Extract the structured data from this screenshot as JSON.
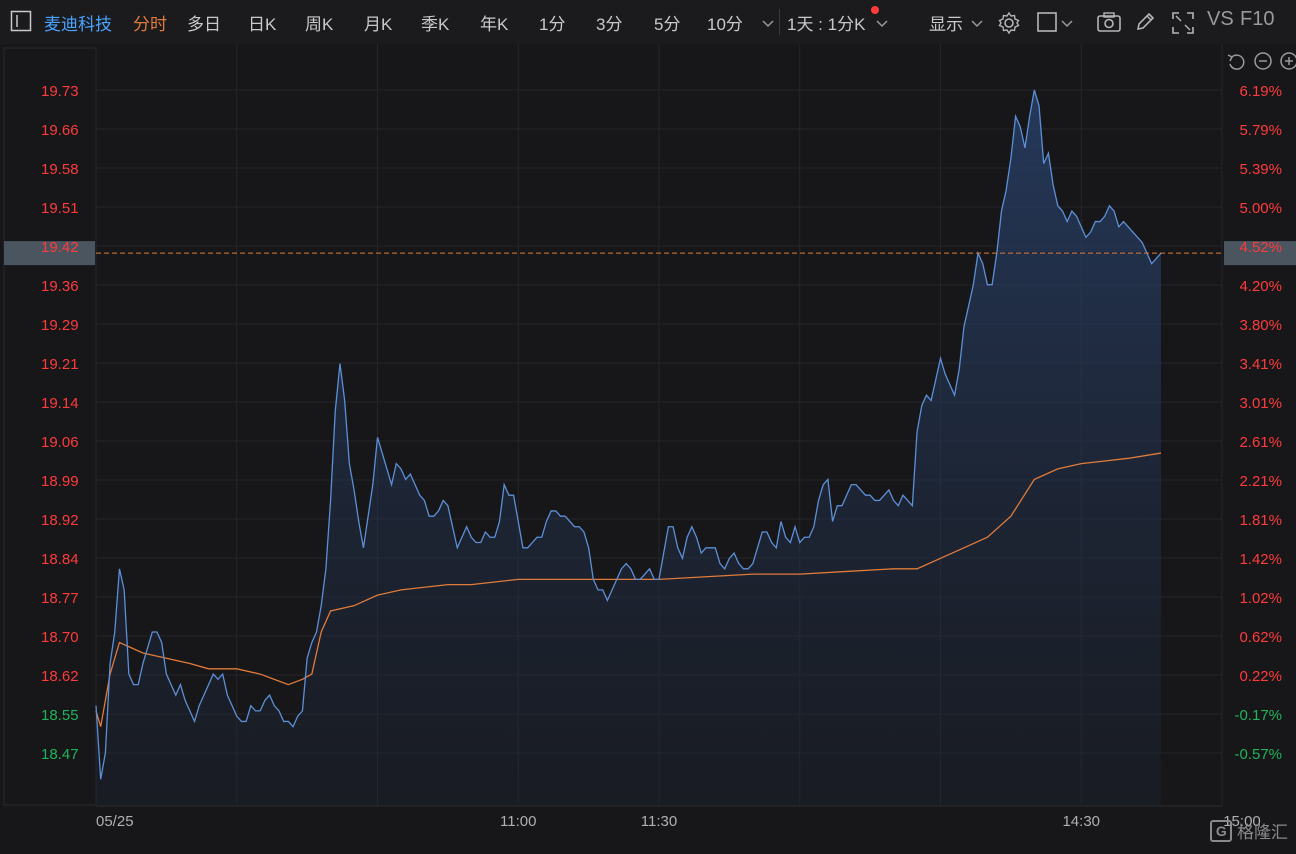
{
  "toolbar": {
    "stock_name": "麦迪科技",
    "tabs": [
      {
        "label": "分时",
        "active": true
      },
      {
        "label": "多日"
      },
      {
        "label": "日K"
      },
      {
        "label": "周K"
      },
      {
        "label": "月K"
      },
      {
        "label": "季K"
      },
      {
        "label": "年K"
      },
      {
        "label": "1分"
      },
      {
        "label": "3分"
      },
      {
        "label": "5分"
      },
      {
        "label": "10分"
      }
    ],
    "range_select": "1天 : 1分K",
    "display_label": "显示",
    "vs_label": "VS",
    "f10_label": "F10",
    "icons": [
      "panel-toggle-icon",
      "more-chevron-icon",
      "gear-icon",
      "square-icon",
      "camera-icon",
      "pencil-icon",
      "fullscreen-icon",
      "undo-icon",
      "zoom-out-icon",
      "zoom-in-icon"
    ]
  },
  "colors": {
    "up": "#ff3b3b",
    "down": "#21b35a",
    "price_line": "#5c8fd6",
    "avg_line": "#e07b3a",
    "active_tab": "#e07b3a",
    "stock_name": "#4aa3ff",
    "price_tag_bg": "#4a5560"
  },
  "current": {
    "price_label": "19.42",
    "pct_label": "4.52%"
  },
  "watermark": "格隆汇",
  "chart_data": {
    "type": "line",
    "title": "",
    "date_label": "05/25",
    "x_tick_labels": [
      "05/25",
      "11:00",
      "11:30",
      "14:30",
      "15:00"
    ],
    "y_ticks_left": [
      "19.73",
      "19.66",
      "19.58",
      "19.51",
      "19.42",
      "19.36",
      "19.29",
      "19.21",
      "19.14",
      "19.06",
      "18.99",
      "18.92",
      "18.84",
      "18.77",
      "18.70",
      "18.62",
      "18.55",
      "18.47"
    ],
    "y_ticks_right": [
      "6.19%",
      "5.79%",
      "5.39%",
      "5.00%",
      "4.52%",
      "4.20%",
      "3.80%",
      "3.41%",
      "3.01%",
      "2.61%",
      "2.21%",
      "1.81%",
      "1.42%",
      "1.02%",
      "0.62%",
      "0.22%",
      "-0.17%",
      "-0.57%"
    ],
    "ylim": [
      18.47,
      19.73
    ],
    "xlim": [
      0,
      240
    ],
    "prev_close": 18.58,
    "last_price": 19.42,
    "grid": true,
    "series": [
      {
        "values": [
          [
            0,
            18.56
          ],
          [
            1,
            18.42
          ],
          [
            2,
            18.47
          ],
          [
            3,
            18.64
          ],
          [
            4,
            18.7
          ],
          [
            5,
            18.82
          ],
          [
            6,
            18.78
          ],
          [
            7,
            18.62
          ],
          [
            8,
            18.6
          ],
          [
            9,
            18.6
          ],
          [
            10,
            18.64
          ],
          [
            11,
            18.67
          ],
          [
            12,
            18.7
          ],
          [
            13,
            18.7
          ],
          [
            14,
            18.68
          ],
          [
            15,
            18.62
          ],
          [
            16,
            18.6
          ],
          [
            17,
            18.58
          ],
          [
            18,
            18.6
          ],
          [
            19,
            18.57
          ],
          [
            20,
            18.55
          ],
          [
            21,
            18.53
          ],
          [
            22,
            18.56
          ],
          [
            23,
            18.58
          ],
          [
            24,
            18.6
          ],
          [
            25,
            18.62
          ],
          [
            26,
            18.61
          ],
          [
            27,
            18.62
          ],
          [
            28,
            18.58
          ],
          [
            29,
            18.56
          ],
          [
            30,
            18.54
          ],
          [
            31,
            18.53
          ],
          [
            32,
            18.53
          ],
          [
            33,
            18.56
          ],
          [
            34,
            18.55
          ],
          [
            35,
            18.55
          ],
          [
            36,
            18.57
          ],
          [
            37,
            18.58
          ],
          [
            38,
            18.56
          ],
          [
            39,
            18.55
          ],
          [
            40,
            18.53
          ],
          [
            41,
            18.53
          ],
          [
            42,
            18.52
          ],
          [
            43,
            18.54
          ],
          [
            44,
            18.55
          ],
          [
            45,
            18.65
          ],
          [
            46,
            18.68
          ],
          [
            47,
            18.7
          ],
          [
            48,
            18.75
          ],
          [
            49,
            18.82
          ],
          [
            50,
            18.95
          ],
          [
            51,
            19.12
          ],
          [
            52,
            19.21
          ],
          [
            53,
            19.14
          ],
          [
            54,
            19.02
          ],
          [
            55,
            18.97
          ],
          [
            56,
            18.91
          ],
          [
            57,
            18.86
          ],
          [
            58,
            18.92
          ],
          [
            59,
            18.98
          ],
          [
            60,
            19.07
          ],
          [
            61,
            19.04
          ],
          [
            62,
            19.01
          ],
          [
            63,
            18.98
          ],
          [
            64,
            19.02
          ],
          [
            65,
            19.01
          ],
          [
            66,
            18.99
          ],
          [
            67,
            19.0
          ],
          [
            68,
            18.98
          ],
          [
            69,
            18.96
          ],
          [
            70,
            18.95
          ],
          [
            71,
            18.92
          ],
          [
            72,
            18.92
          ],
          [
            73,
            18.93
          ],
          [
            74,
            18.95
          ],
          [
            75,
            18.94
          ],
          [
            76,
            18.9
          ],
          [
            77,
            18.86
          ],
          [
            78,
            18.88
          ],
          [
            79,
            18.9
          ],
          [
            80,
            18.88
          ],
          [
            81,
            18.87
          ],
          [
            82,
            18.87
          ],
          [
            83,
            18.89
          ],
          [
            84,
            18.88
          ],
          [
            85,
            18.88
          ],
          [
            86,
            18.91
          ],
          [
            87,
            18.98
          ],
          [
            88,
            18.96
          ],
          [
            89,
            18.96
          ],
          [
            90,
            18.91
          ],
          [
            91,
            18.86
          ],
          [
            92,
            18.86
          ],
          [
            93,
            18.87
          ],
          [
            94,
            18.88
          ],
          [
            95,
            18.88
          ],
          [
            96,
            18.91
          ],
          [
            97,
            18.93
          ],
          [
            98,
            18.93
          ],
          [
            99,
            18.92
          ],
          [
            100,
            18.92
          ],
          [
            101,
            18.91
          ],
          [
            102,
            18.9
          ],
          [
            103,
            18.9
          ],
          [
            104,
            18.89
          ],
          [
            105,
            18.86
          ],
          [
            106,
            18.8
          ],
          [
            107,
            18.78
          ],
          [
            108,
            18.78
          ],
          [
            109,
            18.76
          ],
          [
            110,
            18.78
          ],
          [
            111,
            18.8
          ],
          [
            112,
            18.82
          ],
          [
            113,
            18.83
          ],
          [
            114,
            18.82
          ],
          [
            115,
            18.8
          ],
          [
            116,
            18.8
          ],
          [
            117,
            18.81
          ],
          [
            118,
            18.82
          ],
          [
            119,
            18.8
          ],
          [
            120,
            18.8
          ],
          [
            121,
            18.85
          ],
          [
            122,
            18.9
          ],
          [
            123,
            18.9
          ],
          [
            124,
            18.86
          ],
          [
            125,
            18.84
          ],
          [
            126,
            18.88
          ],
          [
            127,
            18.9
          ],
          [
            128,
            18.88
          ],
          [
            129,
            18.85
          ],
          [
            130,
            18.86
          ],
          [
            131,
            18.86
          ],
          [
            132,
            18.86
          ],
          [
            133,
            18.83
          ],
          [
            134,
            18.82
          ],
          [
            135,
            18.84
          ],
          [
            136,
            18.85
          ],
          [
            137,
            18.83
          ],
          [
            138,
            18.82
          ],
          [
            139,
            18.82
          ],
          [
            140,
            18.83
          ],
          [
            141,
            18.86
          ],
          [
            142,
            18.89
          ],
          [
            143,
            18.89
          ],
          [
            144,
            18.87
          ],
          [
            145,
            18.86
          ],
          [
            146,
            18.91
          ],
          [
            147,
            18.88
          ],
          [
            148,
            18.87
          ],
          [
            149,
            18.9
          ],
          [
            150,
            18.87
          ],
          [
            151,
            18.88
          ],
          [
            152,
            18.88
          ],
          [
            153,
            18.9
          ],
          [
            154,
            18.95
          ],
          [
            155,
            18.98
          ],
          [
            156,
            18.99
          ],
          [
            157,
            18.91
          ],
          [
            158,
            18.94
          ],
          [
            159,
            18.94
          ],
          [
            160,
            18.96
          ],
          [
            161,
            18.98
          ],
          [
            162,
            18.98
          ],
          [
            163,
            18.97
          ],
          [
            164,
            18.96
          ],
          [
            165,
            18.96
          ],
          [
            166,
            18.95
          ],
          [
            167,
            18.95
          ],
          [
            168,
            18.96
          ],
          [
            169,
            18.97
          ],
          [
            170,
            18.95
          ],
          [
            171,
            18.94
          ],
          [
            172,
            18.96
          ],
          [
            173,
            18.95
          ],
          [
            174,
            18.94
          ],
          [
            175,
            19.08
          ],
          [
            176,
            19.13
          ],
          [
            177,
            19.15
          ],
          [
            178,
            19.14
          ],
          [
            179,
            19.18
          ],
          [
            180,
            19.22
          ],
          [
            181,
            19.19
          ],
          [
            182,
            19.17
          ],
          [
            183,
            19.15
          ],
          [
            184,
            19.2
          ],
          [
            185,
            19.28
          ],
          [
            186,
            19.32
          ],
          [
            187,
            19.36
          ],
          [
            188,
            19.42
          ],
          [
            189,
            19.4
          ],
          [
            190,
            19.36
          ],
          [
            191,
            19.36
          ],
          [
            192,
            19.42
          ],
          [
            193,
            19.5
          ],
          [
            194,
            19.54
          ],
          [
            195,
            19.6
          ],
          [
            196,
            19.68
          ],
          [
            197,
            19.66
          ],
          [
            198,
            19.62
          ],
          [
            199,
            19.68
          ],
          [
            200,
            19.73
          ],
          [
            201,
            19.7
          ],
          [
            202,
            19.59
          ],
          [
            203,
            19.61
          ],
          [
            204,
            19.55
          ],
          [
            205,
            19.51
          ],
          [
            206,
            19.5
          ],
          [
            207,
            19.48
          ],
          [
            208,
            19.5
          ],
          [
            209,
            19.49
          ],
          [
            210,
            19.47
          ],
          [
            211,
            19.45
          ],
          [
            212,
            19.46
          ],
          [
            213,
            19.48
          ],
          [
            214,
            19.48
          ],
          [
            215,
            19.49
          ],
          [
            216,
            19.51
          ],
          [
            217,
            19.5
          ],
          [
            218,
            19.47
          ],
          [
            219,
            19.48
          ],
          [
            220,
            19.47
          ],
          [
            221,
            19.46
          ],
          [
            222,
            19.45
          ],
          [
            223,
            19.44
          ],
          [
            224,
            19.42
          ],
          [
            225,
            19.4
          ],
          [
            226,
            19.41
          ],
          [
            227,
            19.42
          ]
        ]
      },
      {
        "values": [
          [
            0,
            18.55
          ],
          [
            1,
            18.52
          ],
          [
            3,
            18.62
          ],
          [
            5,
            18.68
          ],
          [
            10,
            18.66
          ],
          [
            15,
            18.65
          ],
          [
            20,
            18.64
          ],
          [
            24,
            18.63
          ],
          [
            26,
            18.63
          ],
          [
            30,
            18.63
          ],
          [
            35,
            18.62
          ],
          [
            38,
            18.61
          ],
          [
            41,
            18.6
          ],
          [
            44,
            18.61
          ],
          [
            46,
            18.62
          ],
          [
            48,
            18.7
          ],
          [
            50,
            18.74
          ],
          [
            55,
            18.75
          ],
          [
            60,
            18.77
          ],
          [
            65,
            18.78
          ],
          [
            70,
            18.785
          ],
          [
            75,
            18.79
          ],
          [
            80,
            18.79
          ],
          [
            85,
            18.795
          ],
          [
            90,
            18.8
          ],
          [
            100,
            18.8
          ],
          [
            105,
            18.8
          ],
          [
            110,
            18.8
          ],
          [
            120,
            18.8
          ],
          [
            130,
            18.805
          ],
          [
            140,
            18.81
          ],
          [
            150,
            18.81
          ],
          [
            160,
            18.815
          ],
          [
            170,
            18.82
          ],
          [
            175,
            18.82
          ],
          [
            180,
            18.84
          ],
          [
            185,
            18.86
          ],
          [
            190,
            18.88
          ],
          [
            195,
            18.92
          ],
          [
            200,
            18.99
          ],
          [
            205,
            19.01
          ],
          [
            210,
            19.02
          ],
          [
            215,
            19.025
          ],
          [
            220,
            19.03
          ],
          [
            227,
            19.04
          ]
        ]
      }
    ]
  }
}
